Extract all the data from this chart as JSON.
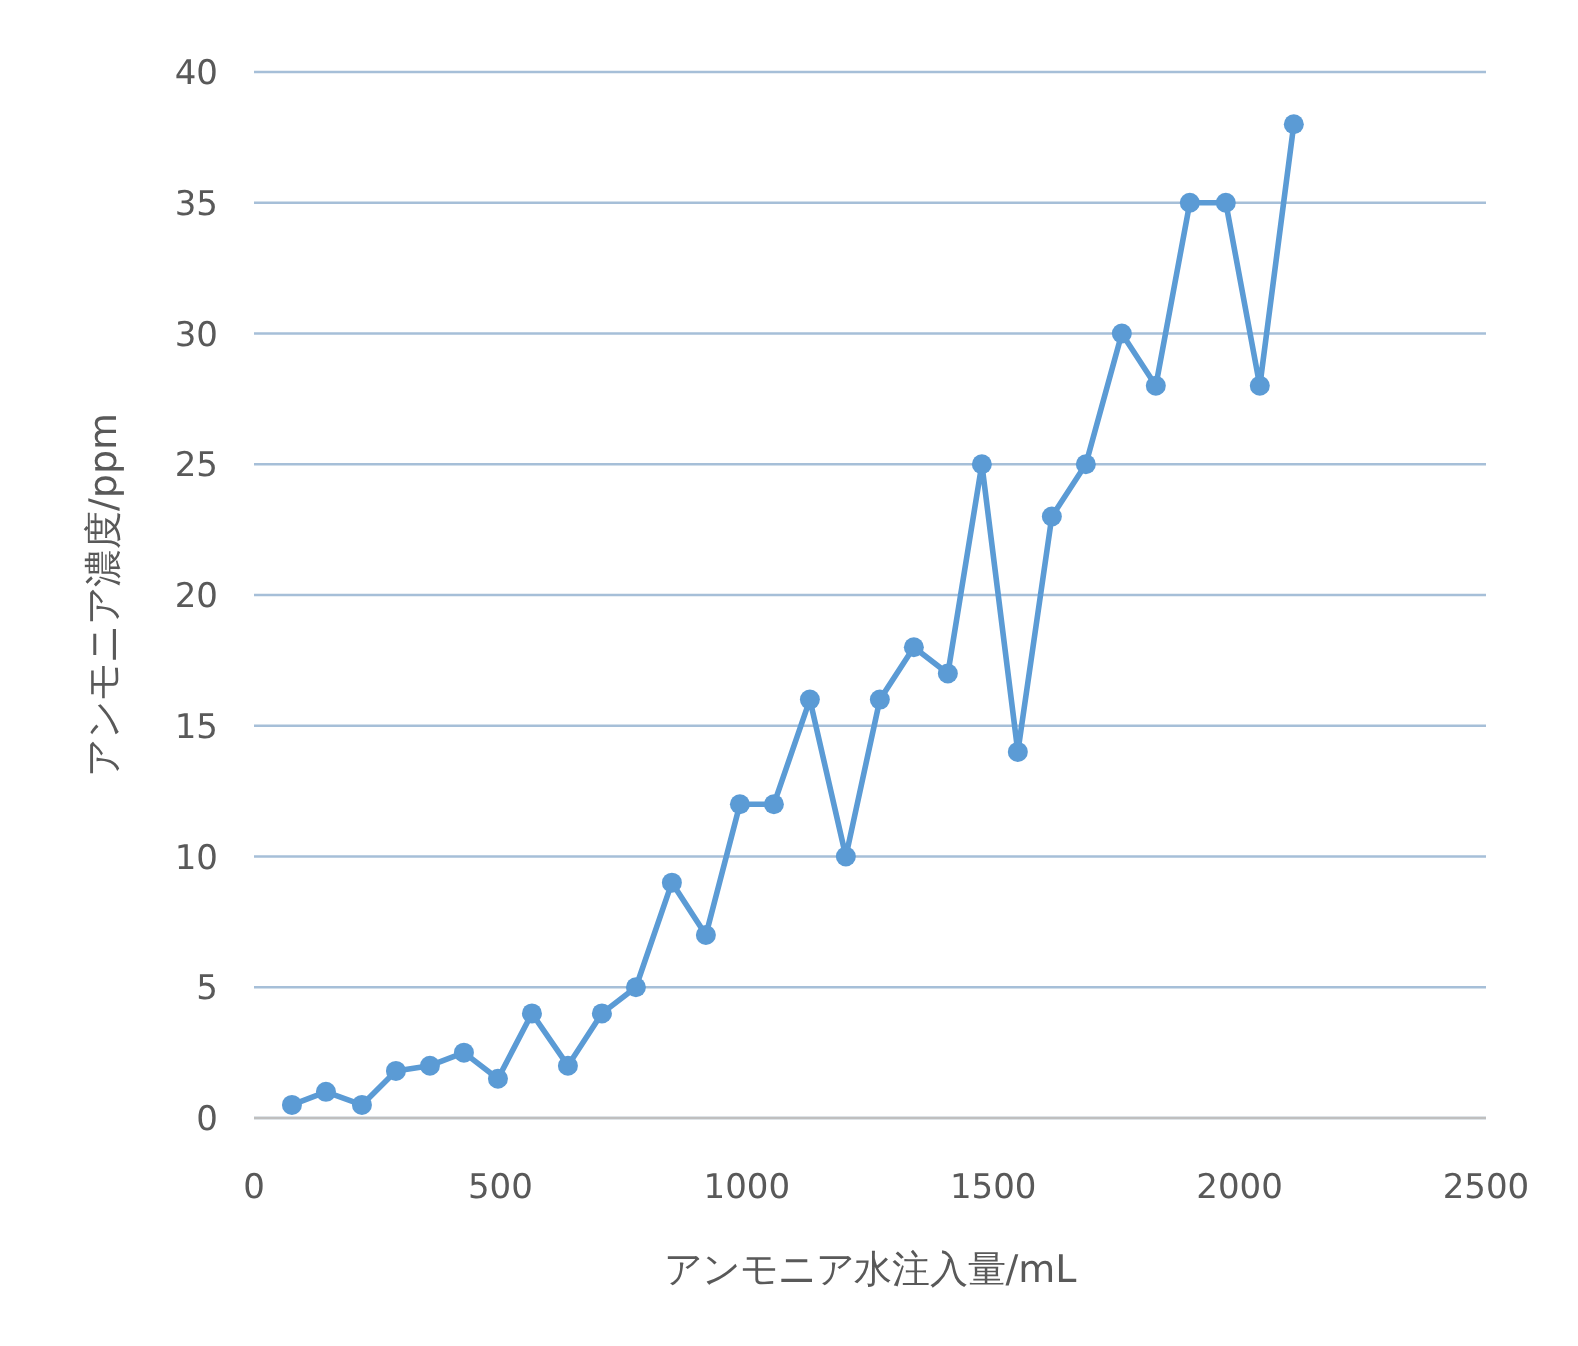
{
  "chart_data": {
    "type": "line",
    "xlabel": "アンモニア水注入量/mL",
    "ylabel": "アンモニア濃度/ppm",
    "x": [
      77,
      146,
      219,
      288,
      357,
      426,
      495,
      564,
      637,
      706,
      775,
      848,
      917,
      986,
      1055,
      1128,
      1201,
      1270,
      1339,
      1408,
      1477,
      1550,
      1619,
      1688,
      1761,
      1830,
      1899,
      1972,
      2041,
      2110
    ],
    "series": [
      {
        "color": "#5b9bd5",
        "values": [
          0.5,
          1.0,
          0.5,
          1.8,
          2.0,
          2.5,
          1.5,
          4.0,
          2.0,
          4.0,
          5.0,
          9.0,
          7.0,
          12,
          12,
          16,
          10,
          16,
          18,
          17,
          25,
          14,
          23,
          25,
          30,
          28,
          35,
          35,
          28,
          38
        ]
      }
    ],
    "xlim": [
      0,
      2500
    ],
    "ylim": [
      0,
      40
    ],
    "xticks": [
      0,
      500,
      1000,
      1500,
      2000,
      2500
    ],
    "yticks": [
      0,
      5,
      10,
      15,
      20,
      25,
      30,
      35,
      40
    ],
    "grid": "y",
    "marker": "circle",
    "line_style": "solid"
  }
}
